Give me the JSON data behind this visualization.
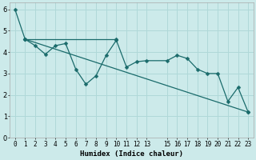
{
  "xlabel": "Humidex (Indice chaleur)",
  "bg_color": "#cceaea",
  "grid_color": "#b0d8d8",
  "line_color": "#1a6b6b",
  "xlim": [
    -0.5,
    23.5
  ],
  "ylim": [
    0,
    6.3
  ],
  "xticks": [
    0,
    1,
    2,
    3,
    4,
    5,
    6,
    7,
    8,
    9,
    10,
    11,
    12,
    13,
    15,
    16,
    17,
    18,
    19,
    20,
    21,
    22,
    23
  ],
  "yticks": [
    0,
    1,
    2,
    3,
    4,
    5,
    6
  ],
  "line1_x": [
    0,
    1,
    2,
    3,
    4,
    5,
    6,
    7,
    8,
    9,
    10,
    11,
    12,
    13,
    15,
    16,
    17,
    18,
    19,
    20,
    21,
    22,
    23
  ],
  "line1_y": [
    6.0,
    4.6,
    4.3,
    3.9,
    4.3,
    4.4,
    3.2,
    2.5,
    2.9,
    3.85,
    4.55,
    3.3,
    3.55,
    3.6,
    3.6,
    3.85,
    3.7,
    3.2,
    3.0,
    3.0,
    1.7,
    2.35,
    1.2
  ],
  "line2_x": [
    1,
    10
  ],
  "line2_y": [
    4.6,
    4.6
  ],
  "line3_x": [
    1,
    23
  ],
  "line3_y": [
    4.6,
    1.2
  ],
  "marker_size": 2.5,
  "line_width": 0.9,
  "tick_fontsize": 5.5,
  "xlabel_fontsize": 6.5
}
